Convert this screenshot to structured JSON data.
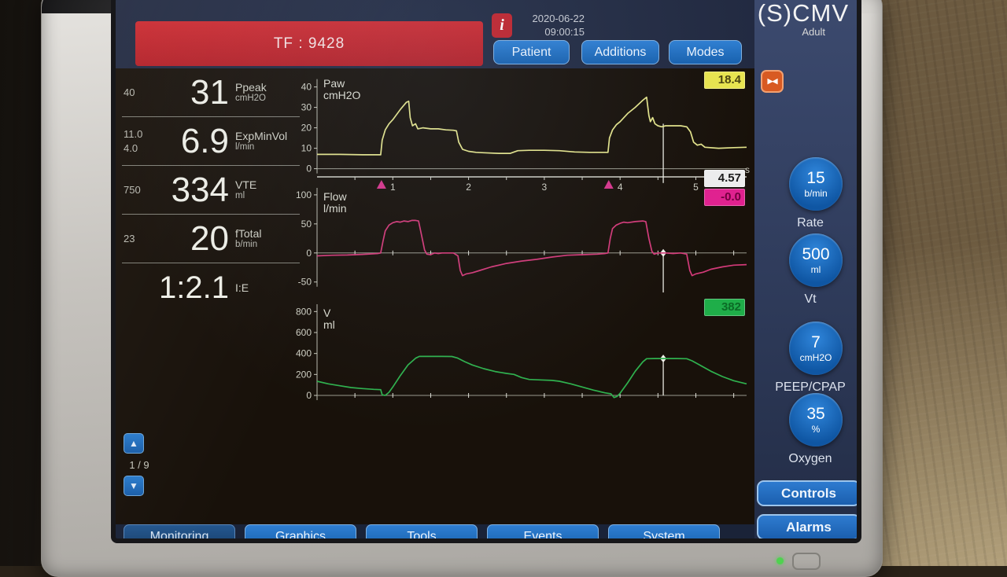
{
  "mode": {
    "title": "(S)CMV",
    "subtitle": "Adult"
  },
  "alarm_banner": {
    "text": "TF : 9428",
    "bg": "#c0242c"
  },
  "info_icon": {
    "glyph": "i"
  },
  "datetime": {
    "date": "2020-06-22",
    "time": "09:00:15"
  },
  "top_buttons": {
    "patient": "Patient",
    "additions": "Additions",
    "modes": "Modes"
  },
  "monitor_params": [
    {
      "name": "Ppeak",
      "unit": "cmH2O",
      "value": "31",
      "aux": [
        "40"
      ]
    },
    {
      "name": "ExpMinVol",
      "unit": "l/min",
      "value": "6.9",
      "aux": [
        "11.0",
        "4.0"
      ]
    },
    {
      "name": "VTE",
      "unit": "ml",
      "value": "334",
      "aux": [
        "750"
      ]
    },
    {
      "name": "fTotal",
      "unit": "b/min",
      "value": "20",
      "aux": [
        "23"
      ]
    },
    {
      "name": "I:E",
      "unit": "",
      "value": "1:2.1",
      "aux": []
    }
  ],
  "pager": {
    "label": "1 / 9",
    "up": "▲",
    "down": "▼"
  },
  "hold_icon": {
    "glyph": "▶◀"
  },
  "settings": [
    {
      "value": "15",
      "unit": "b/min",
      "label": "Rate"
    },
    {
      "value": "500",
      "unit": "ml",
      "label": "Vt"
    },
    {
      "value": "7",
      "unit": "cmH2O",
      "label": "PEEP/CPAP"
    },
    {
      "value": "35",
      "unit": "%",
      "label": "Oxygen"
    }
  ],
  "side_buttons": {
    "controls": "Controls",
    "alarms": "Alarms"
  },
  "bottom_tabs": [
    {
      "label": "Monitoring",
      "active": true
    },
    {
      "label": "Graphics"
    },
    {
      "label": "Tools"
    },
    {
      "label": "Events"
    },
    {
      "label": "System"
    }
  ],
  "colors": {
    "alarm_red": "#c0242c",
    "accent_blue": "#1a6dc2",
    "panel_blue": "#334062",
    "waveform_yellow": "#e3e38a",
    "waveform_pink": "#d23a78",
    "waveform_green": "#2fb14e"
  },
  "chart_data": [
    {
      "type": "line",
      "title": "Paw",
      "unit": "cmH2O",
      "color": "#e3e38a",
      "badge": {
        "value": "18.4",
        "bg": "#e8e44f",
        "fg": "#4a4410"
      },
      "cursor_badge": {
        "value": "4.57",
        "bg": "#ededed",
        "fg": "#1c1c1c"
      },
      "ylim": [
        -14,
        46
      ],
      "yticks": [
        0,
        10,
        20,
        30,
        40
      ],
      "xlim": [
        0,
        5.67
      ],
      "xticks": [
        1,
        2,
        3,
        4,
        5
      ],
      "xunit": "s",
      "tick_step": 0.5,
      "xaxis": "strip",
      "strip_v": -4,
      "trigger_marks": [
        0.85,
        3.85
      ],
      "trigger_color": "#d6368b",
      "cursor": {
        "t": 4.57,
        "v_from": -7,
        "v_to": 22
      },
      "points": [
        [
          0,
          7
        ],
        [
          0.3,
          7
        ],
        [
          0.6,
          6.8
        ],
        [
          0.84,
          6.8
        ],
        [
          0.86,
          14
        ],
        [
          0.9,
          19
        ],
        [
          0.95,
          22
        ],
        [
          1.0,
          24
        ],
        [
          1.1,
          29
        ],
        [
          1.18,
          32.5
        ],
        [
          1.21,
          33
        ],
        [
          1.23,
          25
        ],
        [
          1.26,
          21
        ],
        [
          1.3,
          22
        ],
        [
          1.33,
          19.5
        ],
        [
          1.4,
          20
        ],
        [
          1.5,
          19.5
        ],
        [
          1.6,
          19.5
        ],
        [
          1.7,
          19
        ],
        [
          1.8,
          18.8
        ],
        [
          1.84,
          18.5
        ],
        [
          1.87,
          13
        ],
        [
          1.92,
          9.5
        ],
        [
          2.0,
          8.5
        ],
        [
          2.1,
          8
        ],
        [
          2.2,
          7.8
        ],
        [
          2.4,
          7.5
        ],
        [
          2.55,
          7.5
        ],
        [
          2.65,
          8.8
        ],
        [
          2.8,
          9
        ],
        [
          3.0,
          9
        ],
        [
          3.2,
          8.8
        ],
        [
          3.4,
          8.2
        ],
        [
          3.6,
          8
        ],
        [
          3.84,
          8
        ],
        [
          3.86,
          15
        ],
        [
          3.9,
          19
        ],
        [
          3.95,
          21.5
        ],
        [
          4.0,
          23
        ],
        [
          4.1,
          27
        ],
        [
          4.2,
          30
        ],
        [
          4.3,
          33.5
        ],
        [
          4.35,
          35
        ],
        [
          4.38,
          26
        ],
        [
          4.4,
          23
        ],
        [
          4.43,
          25
        ],
        [
          4.46,
          22
        ],
        [
          4.5,
          21
        ],
        [
          4.55,
          20.5
        ],
        [
          4.6,
          21
        ],
        [
          4.7,
          21
        ],
        [
          4.8,
          21
        ],
        [
          4.88,
          20.5
        ],
        [
          4.93,
          18
        ],
        [
          4.97,
          13
        ],
        [
          5.02,
          11.5
        ],
        [
          5.07,
          12
        ],
        [
          5.12,
          10.5
        ],
        [
          5.3,
          10
        ],
        [
          5.5,
          10.3
        ],
        [
          5.67,
          10.5
        ]
      ]
    },
    {
      "type": "line",
      "title": "Flow",
      "unit": "l/min",
      "color": "#d23a78",
      "badge": {
        "value": "-0.0",
        "bg": "#e0218f",
        "fg": "#70003c"
      },
      "ylim": [
        -72,
        112
      ],
      "yticks": [
        -50,
        0,
        50,
        100
      ],
      "xlim": [
        0,
        5.67
      ],
      "tick_step": 0.5,
      "xaxis": "zero",
      "cursor": {
        "t": 4.57,
        "v_from": -68,
        "v_to": 3,
        "diamond_v": 0
      },
      "points": [
        [
          0,
          -5
        ],
        [
          0.2,
          -4
        ],
        [
          0.4,
          -3.5
        ],
        [
          0.6,
          -2.5
        ],
        [
          0.8,
          -1
        ],
        [
          0.84,
          0
        ],
        [
          0.87,
          20
        ],
        [
          0.9,
          38
        ],
        [
          0.95,
          48
        ],
        [
          1.0,
          52
        ],
        [
          1.05,
          54
        ],
        [
          1.1,
          53
        ],
        [
          1.15,
          55
        ],
        [
          1.2,
          54
        ],
        [
          1.25,
          56
        ],
        [
          1.3,
          56
        ],
        [
          1.34,
          55
        ],
        [
          1.38,
          30
        ],
        [
          1.42,
          5
        ],
        [
          1.45,
          -2
        ],
        [
          1.5,
          -3
        ],
        [
          1.55,
          0
        ],
        [
          1.6,
          -1
        ],
        [
          1.65,
          0
        ],
        [
          1.8,
          0
        ],
        [
          1.86,
          -5
        ],
        [
          1.89,
          -30
        ],
        [
          1.92,
          -39
        ],
        [
          1.97,
          -36
        ],
        [
          2.05,
          -34
        ],
        [
          2.15,
          -30
        ],
        [
          2.3,
          -24
        ],
        [
          2.5,
          -18
        ],
        [
          2.7,
          -14
        ],
        [
          2.9,
          -11
        ],
        [
          3.1,
          -7
        ],
        [
          3.3,
          -4
        ],
        [
          3.5,
          -3
        ],
        [
          3.7,
          -2
        ],
        [
          3.8,
          -1
        ],
        [
          3.84,
          0
        ],
        [
          3.87,
          25
        ],
        [
          3.9,
          42
        ],
        [
          3.95,
          48
        ],
        [
          4.0,
          51
        ],
        [
          4.05,
          53
        ],
        [
          4.1,
          52
        ],
        [
          4.2,
          54
        ],
        [
          4.3,
          55
        ],
        [
          4.34,
          54
        ],
        [
          4.38,
          25
        ],
        [
          4.42,
          3
        ],
        [
          4.45,
          -2
        ],
        [
          4.5,
          0
        ],
        [
          4.6,
          0
        ],
        [
          4.7,
          -1
        ],
        [
          4.8,
          0
        ],
        [
          4.88,
          -2
        ],
        [
          4.92,
          -30
        ],
        [
          4.95,
          -39
        ],
        [
          5.0,
          -36
        ],
        [
          5.1,
          -33
        ],
        [
          5.2,
          -28
        ],
        [
          5.35,
          -24
        ],
        [
          5.5,
          -21
        ],
        [
          5.67,
          -20
        ]
      ]
    },
    {
      "type": "line",
      "title": "V",
      "unit": "ml",
      "color": "#2fb14e",
      "badge": {
        "value": "382",
        "bg": "#1fae49",
        "fg": "#0b6b26"
      },
      "ylim": [
        -90,
        870
      ],
      "yticks": [
        0,
        200,
        400,
        600,
        800
      ],
      "xlim": [
        0,
        5.67
      ],
      "tick_step": 0.5,
      "xaxis": "zero",
      "cursor": {
        "t": 4.57,
        "v_from": 0,
        "v_to": 368,
        "diamond_v": 352
      },
      "points": [
        [
          0,
          135
        ],
        [
          0.15,
          110
        ],
        [
          0.3,
          92
        ],
        [
          0.45,
          75
        ],
        [
          0.6,
          65
        ],
        [
          0.75,
          58
        ],
        [
          0.84,
          55
        ],
        [
          0.86,
          5
        ],
        [
          0.9,
          0
        ],
        [
          0.95,
          30
        ],
        [
          1.0,
          80
        ],
        [
          1.1,
          190
        ],
        [
          1.2,
          290
        ],
        [
          1.3,
          355
        ],
        [
          1.35,
          372
        ],
        [
          1.5,
          372
        ],
        [
          1.65,
          372
        ],
        [
          1.78,
          371
        ],
        [
          1.85,
          358
        ],
        [
          1.95,
          322
        ],
        [
          2.05,
          290
        ],
        [
          2.2,
          255
        ],
        [
          2.35,
          228
        ],
        [
          2.5,
          210
        ],
        [
          2.6,
          200
        ],
        [
          2.7,
          170
        ],
        [
          2.8,
          152
        ],
        [
          2.95,
          148
        ],
        [
          3.1,
          143
        ],
        [
          3.2,
          135
        ],
        [
          3.35,
          110
        ],
        [
          3.5,
          80
        ],
        [
          3.65,
          50
        ],
        [
          3.8,
          25
        ],
        [
          3.88,
          15
        ],
        [
          3.92,
          -20
        ],
        [
          3.96,
          -10
        ],
        [
          4.0,
          20
        ],
        [
          4.1,
          120
        ],
        [
          4.2,
          230
        ],
        [
          4.3,
          320
        ],
        [
          4.35,
          350
        ],
        [
          4.45,
          352
        ],
        [
          4.6,
          352
        ],
        [
          4.75,
          352
        ],
        [
          4.88,
          350
        ],
        [
          4.95,
          330
        ],
        [
          5.05,
          290
        ],
        [
          5.2,
          230
        ],
        [
          5.35,
          180
        ],
        [
          5.5,
          140
        ],
        [
          5.67,
          110
        ]
      ]
    }
  ]
}
